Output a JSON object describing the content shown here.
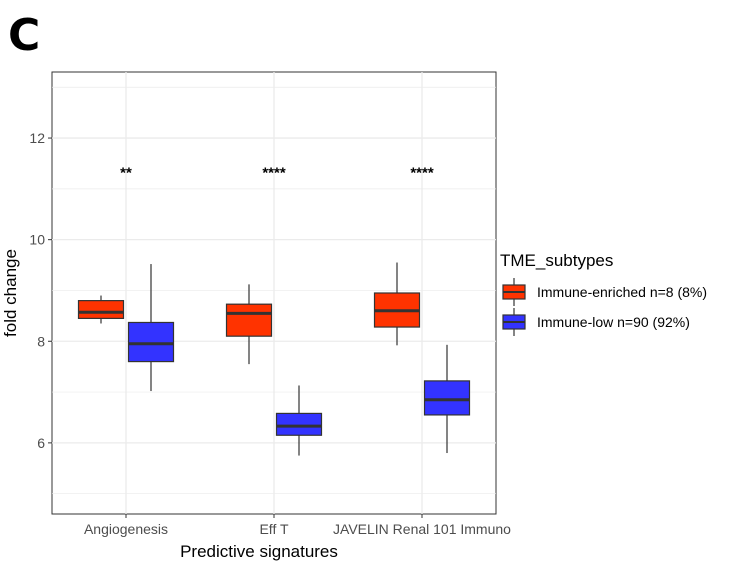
{
  "panel_label": "C",
  "chart_data": {
    "type": "boxplot",
    "title": "",
    "xlabel": "Predictive signatures",
    "ylabel": "fold change",
    "ylim": [
      4.6,
      13.3
    ],
    "yticks": [
      6,
      8,
      10,
      12
    ],
    "grid": true,
    "legend_position": "right",
    "legend_title": "TME_subtypes",
    "categories": [
      "Angiogenesis",
      "Eff T",
      "JAVELIN Renal 101 Immuno"
    ],
    "significance": [
      "**",
      "****",
      "****"
    ],
    "series": [
      {
        "name": "Immune-enriched",
        "legend_label": "Immune-enriched  n=8 (8%)",
        "color": "#ff3300",
        "boxes": [
          {
            "whisker_low": 8.35,
            "q1": 8.45,
            "median": 8.57,
            "q3": 8.8,
            "whisker_high": 8.9
          },
          {
            "whisker_low": 7.55,
            "q1": 8.1,
            "median": 8.55,
            "q3": 8.73,
            "whisker_high": 9.12
          },
          {
            "whisker_low": 7.92,
            "q1": 8.28,
            "median": 8.6,
            "q3": 8.95,
            "whisker_high": 9.55
          }
        ]
      },
      {
        "name": "Immune-low",
        "legend_label": "Immune-low  n=90 (92%)",
        "color": "#3333ff",
        "boxes": [
          {
            "whisker_low": 7.02,
            "q1": 7.6,
            "median": 7.95,
            "q3": 8.37,
            "whisker_high": 9.52
          },
          {
            "whisker_low": 5.75,
            "q1": 6.15,
            "median": 6.33,
            "q3": 6.58,
            "whisker_high": 7.13
          },
          {
            "whisker_low": 5.8,
            "q1": 6.55,
            "median": 6.85,
            "q3": 7.22,
            "whisker_high": 7.93
          }
        ]
      }
    ]
  }
}
